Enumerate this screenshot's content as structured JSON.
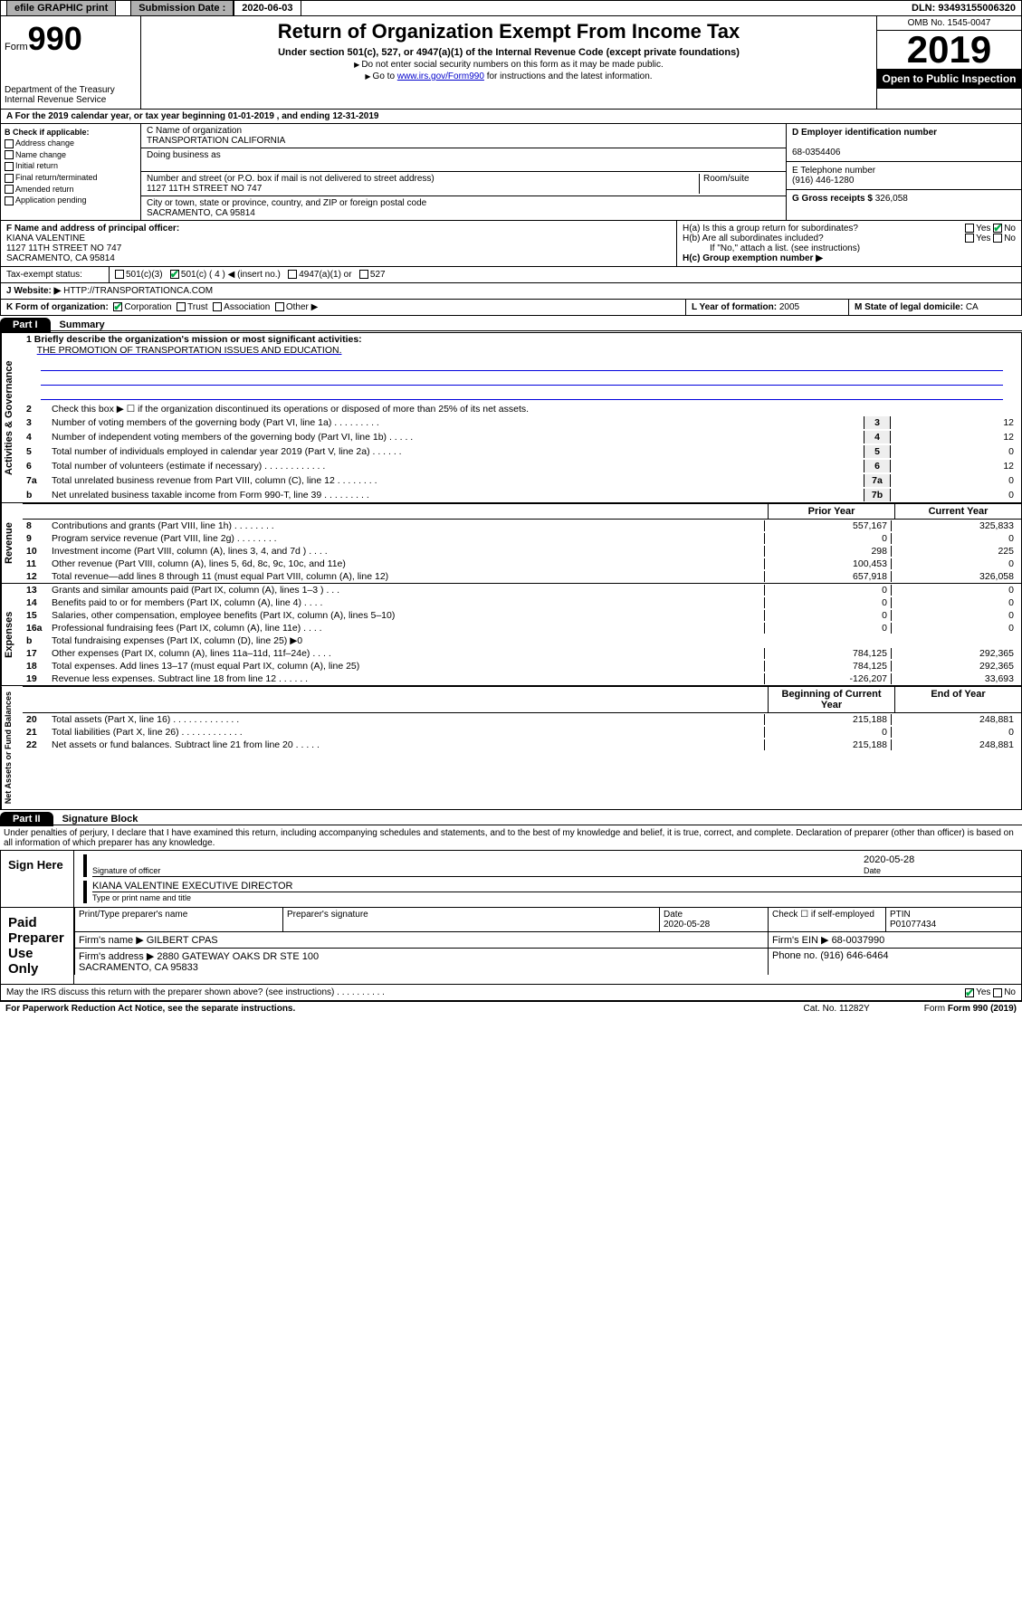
{
  "topbar": {
    "efile": "efile GRAPHIC print",
    "sub_label": "Submission Date :",
    "sub_date": "2020-06-03",
    "dln": "DLN: 93493155006320"
  },
  "header": {
    "form_word": "Form",
    "form_num": "990",
    "dept": "Department of the Treasury\nInternal Revenue Service",
    "title": "Return of Organization Exempt From Income Tax",
    "subtitle": "Under section 501(c), 527, or 4947(a)(1) of the Internal Revenue Code (except private foundations)",
    "sub2a": "Do not enter social security numbers on this form as it may be made public.",
    "sub2b_pre": "Go to ",
    "sub2b_link": "www.irs.gov/Form990",
    "sub2b_post": " for instructions and the latest information.",
    "omb": "OMB No. 1545-0047",
    "year": "2019",
    "open": "Open to Public Inspection"
  },
  "a_line": "A For the 2019 calendar year, or tax year beginning 01-01-2019    , and ending 12-31-2019",
  "box_b": {
    "hdr": "B Check if applicable:",
    "items": [
      "Address change",
      "Name change",
      "Initial return",
      "Final return/terminated",
      "Amended return",
      "Application pending"
    ]
  },
  "box_c": {
    "name_lbl": "C Name of organization",
    "name": "TRANSPORTATION CALIFORNIA",
    "dba_lbl": "Doing business as",
    "addr_lbl": "Number and street (or P.O. box if mail is not delivered to street address)",
    "room_lbl": "Room/suite",
    "addr": "1127 11TH STREET NO 747",
    "city_lbl": "City or town, state or province, country, and ZIP or foreign postal code",
    "city": "SACRAMENTO, CA  95814"
  },
  "box_d": {
    "lbl": "D Employer identification number",
    "val": "68-0354406"
  },
  "box_e": {
    "lbl": "E Telephone number",
    "val": "(916) 446-1280"
  },
  "box_g": {
    "lbl": "G Gross receipts $ ",
    "val": "326,058"
  },
  "box_f": {
    "lbl": "F  Name and address of principal officer:",
    "name": "KIANA VALENTINE",
    "addr1": "1127 11TH STREET NO 747",
    "addr2": "SACRAMENTO, CA  95814"
  },
  "box_h": {
    "ha": "H(a)  Is this a group return for subordinates?",
    "hb": "H(b)  Are all subordinates included?",
    "hb_note": "If \"No,\" attach a list. (see instructions)",
    "hc": "H(c)  Group exemption number ▶"
  },
  "tax_status": {
    "lbl": "Tax-exempt status:",
    "opts": [
      "501(c)(3)",
      "501(c) ( 4 ) ◀ (insert no.)",
      "4947(a)(1) or",
      "527"
    ]
  },
  "website": {
    "lbl": "J    Website: ▶",
    "val": "HTTP://TRANSPORTATIONCA.COM"
  },
  "box_k": "K Form of organization:",
  "k_opts": [
    "Corporation",
    "Trust",
    "Association",
    "Other ▶"
  ],
  "box_l": {
    "lbl": "L Year of formation: ",
    "val": "2005"
  },
  "box_m": {
    "lbl": "M State of legal domicile: ",
    "val": "CA"
  },
  "part1": {
    "tab": "Part I",
    "title": "Summary"
  },
  "part2": {
    "tab": "Part II",
    "title": "Signature Block"
  },
  "mission": {
    "q": "1  Briefly describe the organization's mission or most significant activities:",
    "a": "THE PROMOTION OF TRANSPORTATION ISSUES AND EDUCATION."
  },
  "gov_lines": [
    {
      "n": "2",
      "t": "Check this box ▶ ☐  if the organization discontinued its operations or disposed of more than 25% of its net assets."
    },
    {
      "n": "3",
      "t": "Number of voting members of the governing body (Part VI, line 1a)   .    .    .    .    .    .    .    .    .",
      "k": "3",
      "v": "12"
    },
    {
      "n": "4",
      "t": "Number of independent voting members of the governing body (Part VI, line 1b)   .    .    .    .    .",
      "k": "4",
      "v": "12"
    },
    {
      "n": "5",
      "t": "Total number of individuals employed in calendar year 2019 (Part V, line 2a)   .    .    .    .    .    .",
      "k": "5",
      "v": "0"
    },
    {
      "n": "6",
      "t": "Total number of volunteers (estimate if necessary)   .    .    .    .    .    .    .    .    .    .    .    .",
      "k": "6",
      "v": "12"
    },
    {
      "n": "7a",
      "t": "Total unrelated business revenue from Part VIII, column (C), line 12   .    .    .    .    .    .    .    .",
      "k": "7a",
      "v": "0"
    },
    {
      "n": "b",
      "t": "Net unrelated business taxable income from Form 990-T, line 39   .    .    .    .    .    .    .    .    .",
      "k": "7b",
      "v": "0"
    }
  ],
  "rev_hdr": {
    "prior": "Prior Year",
    "curr": "Current Year"
  },
  "rev_lines": [
    {
      "n": "8",
      "t": "Contributions and grants (Part VIII, line 1h)  .   .   .   .   .   .   .   .",
      "p": "557,167",
      "c": "325,833"
    },
    {
      "n": "9",
      "t": "Program service revenue (Part VIII, line 2g)  .   .   .   .   .   .   .   .",
      "p": "0",
      "c": "0"
    },
    {
      "n": "10",
      "t": "Investment income (Part VIII, column (A), lines 3, 4, and 7d )  .   .   .   .",
      "p": "298",
      "c": "225"
    },
    {
      "n": "11",
      "t": "Other revenue (Part VIII, column (A), lines 5, 6d, 8c, 9c, 10c, and 11e)",
      "p": "100,453",
      "c": "0"
    },
    {
      "n": "12",
      "t": "Total revenue—add lines 8 through 11 (must equal Part VIII, column (A), line 12)",
      "p": "657,918",
      "c": "326,058"
    }
  ],
  "exp_lines": [
    {
      "n": "13",
      "t": "Grants and similar amounts paid (Part IX, column (A), lines 1–3 )  .   .   .",
      "p": "0",
      "c": "0"
    },
    {
      "n": "14",
      "t": "Benefits paid to or for members (Part IX, column (A), line 4)  .   .   .   .",
      "p": "0",
      "c": "0"
    },
    {
      "n": "15",
      "t": "Salaries, other compensation, employee benefits (Part IX, column (A), lines 5–10)",
      "p": "0",
      "c": "0"
    },
    {
      "n": "16a",
      "t": "Professional fundraising fees (Part IX, column (A), line 11e)  .   .   .   .",
      "p": "0",
      "c": "0"
    },
    {
      "n": "b",
      "t": "Total fundraising expenses (Part IX, column (D), line 25) ▶0",
      "p": "",
      "c": ""
    },
    {
      "n": "17",
      "t": "Other expenses (Part IX, column (A), lines 11a–11d, 11f–24e)  .   .   .   .",
      "p": "784,125",
      "c": "292,365"
    },
    {
      "n": "18",
      "t": "Total expenses. Add lines 13–17 (must equal Part IX, column (A), line 25)",
      "p": "784,125",
      "c": "292,365"
    },
    {
      "n": "19",
      "t": "Revenue less expenses. Subtract line 18 from line 12  .   .   .   .   .   .",
      "p": "-126,207",
      "c": "33,693"
    }
  ],
  "na_hdr": {
    "beg": "Beginning of Current Year",
    "end": "End of Year"
  },
  "na_lines": [
    {
      "n": "20",
      "t": "Total assets (Part X, line 16)  .   .   .   .   .   .   .   .   .   .   .   .   .",
      "p": "215,188",
      "c": "248,881"
    },
    {
      "n": "21",
      "t": "Total liabilities (Part X, line 26)  .   .   .   .   .   .   .   .   .   .   .   .",
      "p": "0",
      "c": "0"
    },
    {
      "n": "22",
      "t": "Net assets or fund balances. Subtract line 21 from line 20  .   .   .   .   .",
      "p": "215,188",
      "c": "248,881"
    }
  ],
  "sig": {
    "decl": "Under penalties of perjury, I declare that I have examined this return, including accompanying schedules and statements, and to the best of my knowledge and belief, it is true, correct, and complete. Declaration of preparer (other than officer) is based on all information of which preparer has any knowledge.",
    "sign_here": "Sign Here",
    "sig_of_officer": "Signature of officer",
    "date": "2020-05-28",
    "date_lbl": "Date",
    "typed": "KIANA VALENTINE  EXECUTIVE DIRECTOR",
    "typed_lbl": "Type or print name and title",
    "paid": "Paid Preparer Use Only",
    "prep_name_lbl": "Print/Type preparer's name",
    "prep_sig_lbl": "Preparer's signature",
    "prep_date": "2020-05-28",
    "check_lbl": "Check ☐ if self-employed",
    "ptin_lbl": "PTIN",
    "ptin": "P01077434",
    "firm_name_lbl": "Firm's name    ▶",
    "firm_name": "GILBERT CPAS",
    "firm_ein_lbl": "Firm's EIN ▶",
    "firm_ein": "68-0037990",
    "firm_addr_lbl": "Firm's address ▶",
    "firm_addr": "2880 GATEWAY OAKS DR STE 100\nSACRAMENTO, CA  95833",
    "phone_lbl": "Phone no.",
    "phone": "(916) 646-6464",
    "discuss": "May the IRS discuss this return with the preparer shown above? (see instructions)   .    .    .    .    .    .    .    .    .    ."
  },
  "footer": {
    "pra": "For Paperwork Reduction Act Notice, see the separate instructions.",
    "cat": "Cat. No. 11282Y",
    "form": "Form 990 (2019)"
  },
  "vert_labels": {
    "gov": "Activities & Governance",
    "rev": "Revenue",
    "exp": "Expenses",
    "na": "Net Assets or Fund Balances"
  }
}
